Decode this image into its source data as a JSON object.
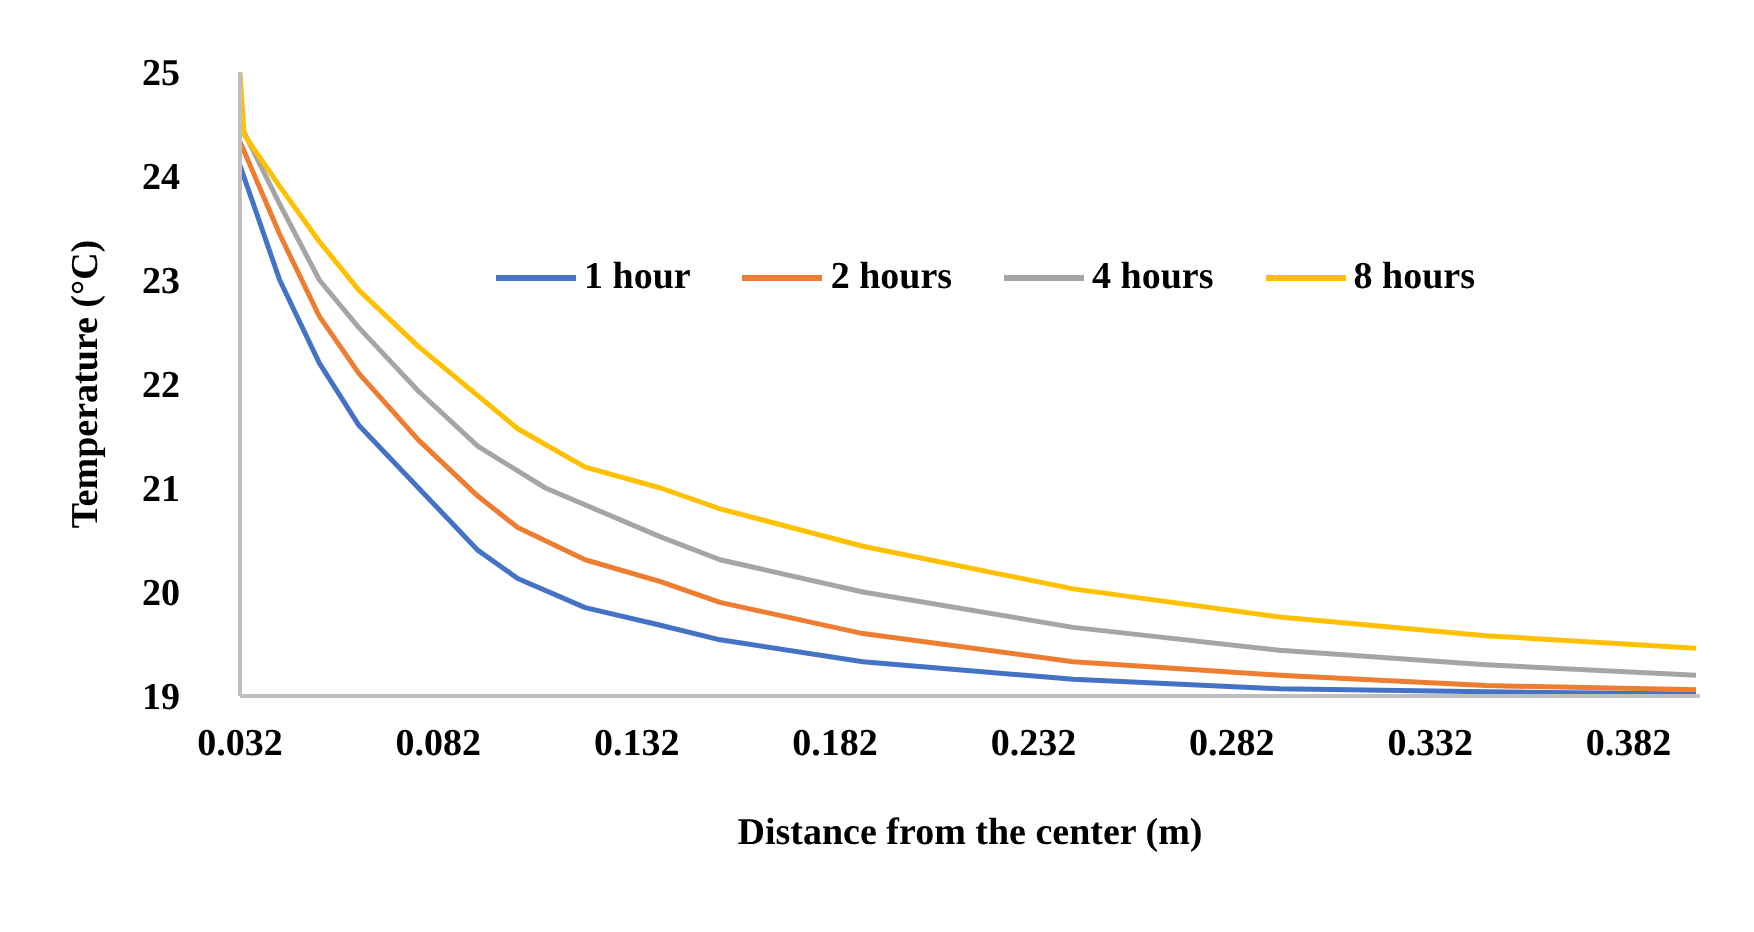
{
  "chart_data": {
    "type": "line",
    "xlabel": "Distance from the center (m)",
    "ylabel": "Temperature (°C)",
    "xlim": [
      0.032,
      0.4
    ],
    "xticks": [
      0.032,
      0.082,
      0.132,
      0.182,
      0.232,
      0.282,
      0.332,
      0.382
    ],
    "ylim": [
      19,
      25
    ],
    "yticks": [
      19,
      20,
      21,
      22,
      23,
      24,
      25
    ],
    "grid": false,
    "legend": "top right",
    "marker": "none",
    "line_style": "solid",
    "series": [
      {
        "name": "1 hour",
        "color": "#4472c4",
        "x": [
          0.032,
          0.042,
          0.052,
          0.062,
          0.077,
          0.092,
          0.102,
          0.119,
          0.138,
          0.153,
          0.189,
          0.242,
          0.294,
          0.346,
          0.399
        ],
        "values": [
          24.1,
          23.0,
          22.2,
          21.6,
          21.0,
          20.4,
          20.13,
          19.85,
          19.68,
          19.54,
          19.33,
          19.16,
          19.07,
          19.04,
          19.02
        ]
      },
      {
        "name": "2 hours",
        "color": "#ed7d31",
        "x": [
          0.032,
          0.042,
          0.052,
          0.062,
          0.077,
          0.092,
          0.102,
          0.119,
          0.138,
          0.153,
          0.189,
          0.242,
          0.294,
          0.346,
          0.399
        ],
        "values": [
          24.33,
          23.44,
          22.65,
          22.1,
          21.46,
          20.92,
          20.62,
          20.31,
          20.1,
          19.9,
          19.6,
          19.33,
          19.2,
          19.1,
          19.06
        ]
      },
      {
        "name": "4 hours",
        "color": "#a5a5a5",
        "x": [
          0.032,
          0.042,
          0.052,
          0.062,
          0.077,
          0.092,
          0.109,
          0.138,
          0.153,
          0.189,
          0.242,
          0.294,
          0.346,
          0.399
        ],
        "values": [
          24.5,
          23.73,
          23.0,
          22.54,
          21.93,
          21.4,
          21.0,
          20.53,
          20.31,
          20.0,
          19.66,
          19.44,
          19.3,
          19.2
        ]
      },
      {
        "name": "8 hours",
        "color": "#ffc000",
        "x": [
          0.032,
          0.033,
          0.042,
          0.052,
          0.062,
          0.077,
          0.102,
          0.119,
          0.138,
          0.153,
          0.189,
          0.242,
          0.294,
          0.346,
          0.399
        ],
        "values": [
          25,
          24.4,
          23.9,
          23.37,
          22.9,
          22.36,
          21.57,
          21.2,
          21.0,
          20.8,
          20.44,
          20.03,
          19.76,
          19.58,
          19.46
        ]
      }
    ]
  }
}
